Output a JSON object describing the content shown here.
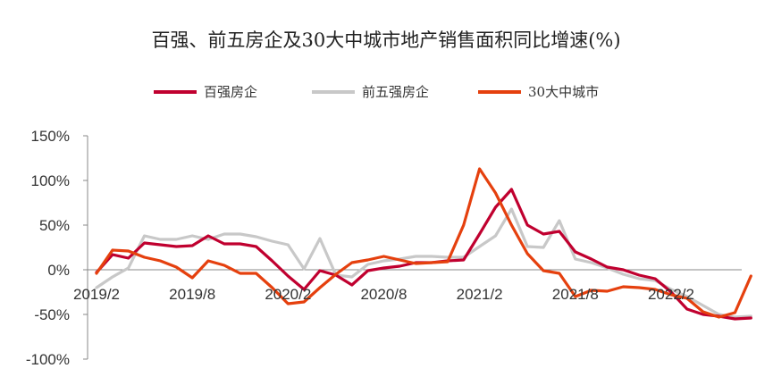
{
  "chart_data": {
    "type": "line",
    "title": "百强、前五房企及30大中城市地产销售面积同比增速(%)",
    "xlabel": "",
    "ylabel": "",
    "ylim": [
      -100,
      150
    ],
    "y_ticks": [
      -100,
      -50,
      0,
      50,
      100,
      150
    ],
    "y_tick_labels": [
      "-100%",
      "-50%",
      "0%",
      "50%",
      "100%",
      "150%"
    ],
    "x_tick_labels": [
      "2019/2",
      "2019/8",
      "2020/2",
      "2020/8",
      "2021/2",
      "2021/8",
      "2022/2"
    ],
    "grid": false,
    "legend_position": "top-center",
    "x": [
      "2019/2",
      "2019/3",
      "2019/4",
      "2019/5",
      "2019/6",
      "2019/7",
      "2019/8",
      "2019/9",
      "2019/10",
      "2019/11",
      "2019/12",
      "2020/1",
      "2020/2",
      "2020/3",
      "2020/4",
      "2020/5",
      "2020/6",
      "2020/7",
      "2020/8",
      "2020/9",
      "2020/10",
      "2020/11",
      "2020/12",
      "2021/1",
      "2021/2",
      "2021/3",
      "2021/4",
      "2021/5",
      "2021/6",
      "2021/7",
      "2021/8",
      "2021/9",
      "2021/10",
      "2021/11",
      "2021/12",
      "2022/1",
      "2022/2",
      "2022/3",
      "2022/4",
      "2022/5",
      "2022/6",
      "2022/7"
    ],
    "series": [
      {
        "name": "百强房企",
        "color": "#c0002f",
        "values": [
          -3,
          17,
          13,
          30,
          28,
          26,
          27,
          38,
          29,
          29,
          26,
          10,
          -7,
          -22,
          -1,
          -6,
          -17,
          -1,
          2,
          4,
          8,
          8,
          10,
          11,
          40,
          70,
          90,
          50,
          40,
          43,
          20,
          12,
          3,
          0,
          -6,
          -10,
          -25,
          -44,
          -50,
          -52,
          -55,
          -54
        ]
      },
      {
        "name": "前五强房企",
        "color": "#c8c8c8",
        "values": [
          -20,
          -8,
          2,
          38,
          34,
          34,
          38,
          34,
          40,
          40,
          37,
          32,
          28,
          1,
          35,
          -6,
          -8,
          6,
          10,
          12,
          15,
          15,
          14,
          14,
          26,
          38,
          68,
          26,
          25,
          55,
          12,
          8,
          2,
          -5,
          -10,
          -12,
          -22,
          -30,
          -40,
          -50,
          -53,
          -52
        ]
      },
      {
        "name": "30大中城市",
        "color": "#e5400e",
        "values": [
          -4,
          22,
          21,
          14,
          10,
          3,
          -9,
          10,
          5,
          -4,
          -4,
          -20,
          -38,
          -36,
          -20,
          -5,
          8,
          11,
          15,
          11,
          7,
          8,
          9,
          50,
          113,
          86,
          50,
          18,
          -1,
          -4,
          -30,
          -23,
          -24,
          -19,
          -20,
          -22,
          -28,
          -32,
          -47,
          -53,
          -48,
          -7
        ]
      }
    ]
  }
}
